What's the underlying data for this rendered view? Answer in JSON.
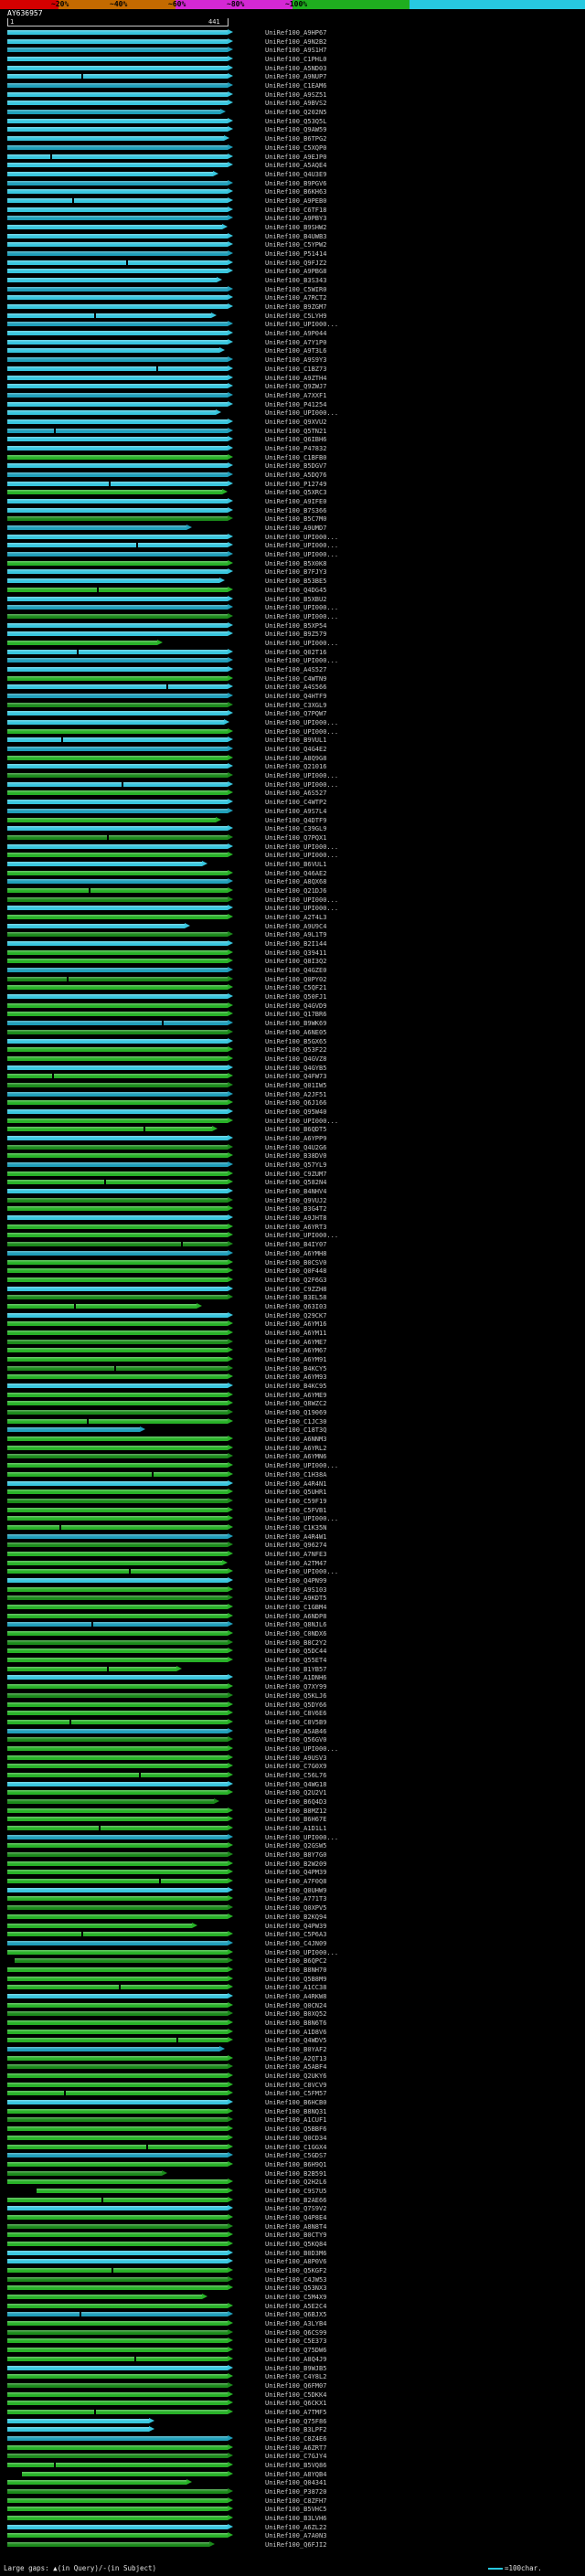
{
  "query": {
    "name": "AY636957",
    "start_label": "1",
    "end_label": "441",
    "length": 441
  },
  "legend": {
    "gaps_text": "Large gaps: ▲(in Query)/-(in Subject)",
    "scale_text": "=100char.",
    "scale_line_color": "#27c8e0"
  },
  "colors": {
    "background": "#000000",
    "label_text": "#c9c9c9",
    "ruler": "#c8c8c8"
  },
  "chart_data": {
    "type": "bar",
    "orientation": "horizontal",
    "title": "AY636957",
    "x_range": [
      1,
      441
    ],
    "identity_key": {
      "labels": [
        "~20%",
        "~40%",
        "~60%",
        "~80%",
        "~100%"
      ],
      "colors": [
        "#d40000",
        "#c46a00",
        "#d428d4",
        "#1fae1f",
        "#27c8e0"
      ],
      "widths": [
        64,
        128,
        128,
        128,
        192
      ]
    },
    "label_prefix": "UniRef100_",
    "palette": [
      "#38c6de",
      "#1f9fba",
      "#27b127",
      "#1b8a1b"
    ],
    "rows_format": [
      "label_suffix",
      "palette_index",
      "q_end",
      "q_start",
      "gap_positions"
    ],
    "rows": [
      [
        "A9HP67",
        0,
        441
      ],
      [
        "A9N2B2",
        0,
        441
      ],
      [
        "A9S1H7",
        1,
        441
      ],
      [
        "C1PHL0",
        0,
        441
      ],
      [
        "A5ND03",
        0,
        441
      ],
      [
        "A9NUP7",
        0,
        441,
        1,
        [
          150
        ]
      ],
      [
        "C1EAM6",
        1,
        441
      ],
      [
        "A9SZ51",
        0,
        441
      ],
      [
        "A9BVS2",
        0,
        441
      ],
      [
        "Q202N5",
        1,
        428
      ],
      [
        "Q53Q5L",
        0,
        441
      ],
      [
        "Q9AW59",
        0,
        441
      ],
      [
        "B6TPG2",
        0,
        435
      ],
      [
        "C5XQP0",
        1,
        441
      ],
      [
        "A9EJP0",
        0,
        441,
        1,
        [
          88
        ]
      ],
      [
        "A5AQE4",
        0,
        441
      ],
      [
        "Q4U3E9",
        0,
        412
      ],
      [
        "B9PGV6",
        1,
        441
      ],
      [
        "B6KH63",
        0,
        441
      ],
      [
        "A9PEB0",
        0,
        441,
        1,
        [
          132
        ]
      ],
      [
        "C6TF18",
        0,
        441
      ],
      [
        "A9PBY3",
        1,
        441
      ],
      [
        "B9SHW2",
        0,
        430
      ],
      [
        "B4UWB3",
        0,
        441
      ],
      [
        "C5YPW2",
        0,
        441
      ],
      [
        "P51414",
        1,
        441
      ],
      [
        "Q9FJZ2",
        0,
        441,
        1,
        [
          240
        ]
      ],
      [
        "A9PBG8",
        0,
        441
      ],
      [
        "B3S343",
        0,
        420
      ],
      [
        "C5WIR0",
        1,
        441
      ],
      [
        "A7RCT2",
        0,
        441
      ],
      [
        "B9ZGM7",
        0,
        441
      ],
      [
        "C5LYH9",
        0,
        408,
        1,
        [
          175
        ]
      ],
      [
        "UPI000...",
        1,
        441
      ],
      [
        "A9P044",
        0,
        441
      ],
      [
        "A7Y1P0",
        0,
        441
      ],
      [
        "A9T3L6",
        0,
        425
      ],
      [
        "A9S9Y3",
        1,
        441
      ],
      [
        "C1BZ73",
        0,
        441,
        1,
        [
          300
        ]
      ],
      [
        "A9ZTH4",
        0,
        441
      ],
      [
        "Q9ZWJ7",
        0,
        441
      ],
      [
        "A7XXF1",
        1,
        441
      ],
      [
        "P41254",
        0,
        441
      ],
      [
        "UPI000...",
        0,
        418
      ],
      [
        "Q9XVU2",
        0,
        441
      ],
      [
        "Q5TN21",
        1,
        441,
        1,
        [
          95
        ]
      ],
      [
        "Q6IBH6",
        0,
        441
      ],
      [
        "P47832",
        0,
        441
      ],
      [
        "C1BFB0",
        2,
        441
      ],
      [
        "B5DGV7",
        0,
        441
      ],
      [
        "A5DQ76",
        1,
        441
      ],
      [
        "P12749",
        0,
        441,
        1,
        [
          205
        ]
      ],
      [
        "Q5XRC3",
        2,
        430
      ],
      [
        "A9IFE0",
        0,
        441
      ],
      [
        "B7S366",
        0,
        441
      ],
      [
        "B5C7M0",
        3,
        441
      ],
      [
        "A9UMD7",
        1,
        360
      ],
      [
        "UPI000...",
        0,
        441
      ],
      [
        "UPI000...",
        0,
        441,
        1,
        [
          260
        ]
      ],
      [
        "UPI000...",
        1,
        441
      ],
      [
        "B5X0K8",
        2,
        441
      ],
      [
        "B7FJY3",
        0,
        441
      ],
      [
        "B53BE5",
        0,
        425
      ],
      [
        "Q4DG45",
        2,
        441,
        1,
        [
          180
        ]
      ],
      [
        "B5XBU2",
        0,
        441
      ],
      [
        "UPI000...",
        1,
        441
      ],
      [
        "UPI000...",
        3,
        441
      ],
      [
        "B5XP54",
        0,
        441
      ],
      [
        "B9Z579",
        0,
        441
      ],
      [
        "UPI000...",
        2,
        300
      ],
      [
        "Q02T16",
        0,
        441,
        1,
        [
          140
        ]
      ],
      [
        "UPI000...",
        1,
        441
      ],
      [
        "A4S527",
        0,
        441
      ],
      [
        "C4WTN9",
        2,
        441
      ],
      [
        "A4S566",
        0,
        441,
        1,
        [
          320
        ]
      ],
      [
        "Q4HTF9",
        1,
        441
      ],
      [
        "C3XGL9",
        3,
        441
      ],
      [
        "Q7PQW7",
        0,
        441
      ],
      [
        "UPI000...",
        0,
        435
      ],
      [
        "UPI000...",
        2,
        441
      ],
      [
        "B9VUL1",
        0,
        441,
        1,
        [
          110
        ]
      ],
      [
        "Q4G4E2",
        1,
        441
      ],
      [
        "A8Q9G8",
        2,
        441
      ],
      [
        "Q21016",
        0,
        441
      ],
      [
        "UPI000...",
        3,
        441
      ],
      [
        "UPI000...",
        0,
        441,
        1,
        [
          230
        ]
      ],
      [
        "A6S527",
        2,
        441
      ],
      [
        "C4WTP2",
        0,
        441
      ],
      [
        "A9S7L4",
        1,
        441
      ],
      [
        "Q4DTF9",
        2,
        418
      ],
      [
        "C39GL9",
        0,
        441
      ],
      [
        "Q7PQX1",
        3,
        441,
        1,
        [
          200
        ]
      ],
      [
        "UPI000...",
        0,
        441
      ],
      [
        "UPI000...",
        2,
        441
      ],
      [
        "B6VUL1",
        0,
        390
      ],
      [
        "Q46AE2",
        2,
        441
      ],
      [
        "A8QX68",
        1,
        441
      ],
      [
        "Q21DJ6",
        2,
        441,
        1,
        [
          165
        ]
      ],
      [
        "UPI000...",
        3,
        441
      ],
      [
        "UPI000...",
        0,
        441
      ],
      [
        "A2T4L3",
        2,
        441
      ],
      [
        "A9U9C4",
        0,
        355
      ],
      [
        "A9L1T9",
        3,
        441
      ],
      [
        "B2I144",
        0,
        441
      ],
      [
        "Q39411",
        2,
        441
      ],
      [
        "Q8I3Q2",
        2,
        441
      ],
      [
        "Q4GZE0",
        1,
        441
      ],
      [
        "Q0PY02",
        3,
        441,
        1,
        [
          120
        ]
      ],
      [
        "C5QF21",
        2,
        441
      ],
      [
        "Q50FJ1",
        0,
        441
      ],
      [
        "Q4GVD9",
        2,
        441
      ],
      [
        "Q17BR6",
        2,
        441
      ],
      [
        "B9WK69",
        1,
        441,
        1,
        [
          310
        ]
      ],
      [
        "A6NE05",
        3,
        441
      ],
      [
        "B5GX65",
        0,
        441
      ],
      [
        "Q53F22",
        2,
        441
      ],
      [
        "Q4GVZ8",
        2,
        441
      ],
      [
        "Q4GYB5",
        0,
        441
      ],
      [
        "Q4FW73",
        2,
        441,
        1,
        [
          90
        ]
      ],
      [
        "Q01IW5",
        3,
        441
      ],
      [
        "A2JF51",
        1,
        441
      ],
      [
        "Q6J166",
        2,
        441
      ],
      [
        "Q95W40",
        0,
        441
      ],
      [
        "UPI000...",
        2,
        441
      ],
      [
        "B6QDT5",
        2,
        410,
        1,
        [
          275
        ]
      ],
      [
        "A6YPP9",
        0,
        441
      ],
      [
        "Q4U2G6",
        3,
        441
      ],
      [
        "B38DV0",
        2,
        441
      ],
      [
        "Q57YL9",
        1,
        441
      ],
      [
        "C9ZUM7",
        2,
        441
      ],
      [
        "Q582N4",
        2,
        441,
        1,
        [
          195
        ]
      ],
      [
        "B4NHV4",
        0,
        441
      ],
      [
        "Q9VUJ2",
        3,
        441
      ],
      [
        "B3G4T2",
        2,
        441
      ],
      [
        "A9JHT8",
        0,
        441
      ],
      [
        "A6YRT3",
        2,
        441
      ],
      [
        "UPI000...",
        2,
        441
      ],
      [
        "B4IY07",
        3,
        441,
        1,
        [
          350
        ]
      ],
      [
        "A6YMH8",
        1,
        441
      ],
      [
        "B0CSV0",
        2,
        441
      ],
      [
        "Q0F448",
        2,
        441
      ],
      [
        "Q2F6G3",
        2,
        441
      ],
      [
        "C9ZZH8",
        0,
        441
      ],
      [
        "B3EL58",
        3,
        441
      ],
      [
        "Q63I03",
        2,
        380,
        1,
        [
          135
        ]
      ],
      [
        "Q29CK7",
        0,
        441
      ],
      [
        "A6YM16",
        2,
        441
      ],
      [
        "A6YM11",
        2,
        441
      ],
      [
        "A6YME7",
        3,
        441
      ],
      [
        "A6YM67",
        2,
        441
      ],
      [
        "A6YM91",
        2,
        441
      ],
      [
        "B4KCY5",
        3,
        441,
        1,
        [
          215
        ]
      ],
      [
        "A6YM93",
        2,
        441
      ],
      [
        "B4KC95",
        0,
        441
      ],
      [
        "A6YME9",
        2,
        441
      ],
      [
        "Q8WZC2",
        2,
        441
      ],
      [
        "Q19069",
        3,
        441
      ],
      [
        "C1JC30",
        2,
        441,
        1,
        [
          160
        ]
      ],
      [
        "C18T3Q",
        1,
        265
      ],
      [
        "A6NNM3",
        2,
        441
      ],
      [
        "A6YRL2",
        2,
        441
      ],
      [
        "A6YMN6",
        3,
        441
      ],
      [
        "UPI000...",
        2,
        441
      ],
      [
        "C1H38A",
        2,
        441,
        1,
        [
          290
        ]
      ],
      [
        "A4R4N1",
        0,
        441
      ],
      [
        "Q5UHR1",
        2,
        441
      ],
      [
        "C59F19",
        3,
        441
      ],
      [
        "C5FVB1",
        2,
        441
      ],
      [
        "UPI000...",
        2,
        441
      ],
      [
        "C1K35N",
        2,
        441,
        1,
        [
          105
        ]
      ],
      [
        "A4R4W1",
        1,
        441
      ],
      [
        "Q96274",
        3,
        441
      ],
      [
        "A7NFE3",
        2,
        441
      ],
      [
        "A2TM47",
        2,
        430
      ],
      [
        "UPI000...",
        2,
        441,
        1,
        [
          245
        ]
      ],
      [
        "Q4PN99",
        0,
        441
      ],
      [
        "A9S103",
        2,
        441
      ],
      [
        "A9KDT5",
        3,
        441
      ],
      [
        "C1GBM4",
        2,
        441
      ],
      [
        "A6NDP8",
        2,
        441
      ],
      [
        "Q8NJL6",
        1,
        441,
        1,
        [
          170
        ]
      ],
      [
        "C0NDX6",
        2,
        441
      ],
      [
        "B8C2Y2",
        3,
        441
      ],
      [
        "Q5DC44",
        2,
        441
      ],
      [
        "Q55ET4",
        2,
        441
      ],
      [
        "B1YB57",
        2,
        340,
        1,
        [
          200
        ]
      ],
      [
        "A1DNH6",
        0,
        441
      ],
      [
        "Q7XY99",
        2,
        441
      ],
      [
        "Q5KLJ6",
        3,
        441
      ],
      [
        "Q5DY66",
        2,
        441
      ],
      [
        "C8V6E6",
        2,
        441
      ],
      [
        "C8V5B9",
        2,
        441,
        1,
        [
          125
        ]
      ],
      [
        "A5AB46",
        1,
        441
      ],
      [
        "Q56GV0",
        3,
        441
      ],
      [
        "UPI000...",
        2,
        441
      ],
      [
        "A9USV3",
        2,
        441
      ],
      [
        "C7G0X9",
        2,
        441
      ],
      [
        "C56L76",
        2,
        441,
        1,
        [
          265
        ]
      ],
      [
        "Q4WG18",
        0,
        441
      ],
      [
        "Q2U2V1",
        2,
        441
      ],
      [
        "B6Q4D3",
        3,
        415
      ],
      [
        "B8MZ12",
        2,
        441
      ],
      [
        "B6H67E",
        2,
        441
      ],
      [
        "A1D1L1",
        2,
        441,
        1,
        [
          185
        ]
      ],
      [
        "UPI000...",
        1,
        441
      ],
      [
        "Q2GSW5",
        2,
        441
      ],
      [
        "B8Y7G0",
        3,
        441
      ],
      [
        "B2W209",
        2,
        441
      ],
      [
        "Q4PM39",
        2,
        441
      ],
      [
        "A7F0Q8",
        2,
        441,
        1,
        [
          305
        ]
      ],
      [
        "Q0UHW9",
        0,
        441
      ],
      [
        "A771T3",
        2,
        441
      ],
      [
        "Q0XPV5",
        3,
        441
      ],
      [
        "B2KQ94",
        2,
        441
      ],
      [
        "Q4PW39",
        2,
        370
      ],
      [
        "C5P6A3",
        2,
        441,
        1,
        [
          150
        ]
      ],
      [
        "C4JN09",
        1,
        441
      ],
      [
        "UPI000...",
        2,
        441
      ],
      [
        "B6QPC2",
        3,
        441,
        15
      ],
      [
        "B8NH70",
        2,
        441
      ],
      [
        "Q5B8M9",
        2,
        441
      ],
      [
        "A1CC38",
        2,
        441,
        1,
        [
          225
        ]
      ],
      [
        "A4RKW8",
        0,
        441
      ],
      [
        "Q0CN24",
        2,
        441
      ],
      [
        "B0XQ52",
        3,
        441
      ],
      [
        "B8N6T6",
        2,
        441
      ],
      [
        "A1D8V6",
        2,
        441
      ],
      [
        "Q4WDV5",
        2,
        441,
        1,
        [
          340
        ]
      ],
      [
        "B0YAF2",
        1,
        425
      ],
      [
        "A2QT13",
        2,
        441
      ],
      [
        "A5ABF4",
        3,
        441
      ],
      [
        "Q2UKY6",
        2,
        441
      ],
      [
        "C8VCV9",
        2,
        441
      ],
      [
        "C5FM57",
        2,
        441,
        1,
        [
          115
        ]
      ],
      [
        "B6HCB0",
        0,
        441
      ],
      [
        "B8NQ31",
        2,
        441
      ],
      [
        "A1CUF1",
        3,
        441
      ],
      [
        "Q5BBF6",
        2,
        441
      ],
      [
        "Q0CD34",
        2,
        441
      ],
      [
        "C1GGX4",
        2,
        441,
        1,
        [
          280
        ]
      ],
      [
        "C5GDS7",
        1,
        441
      ],
      [
        "B6H9Q1",
        2,
        441
      ],
      [
        "B2B591",
        3,
        310
      ],
      [
        "Q2H2L6",
        2,
        441
      ],
      [
        "C9S7U5",
        2,
        441,
        60
      ],
      [
        "B2AE66",
        2,
        441,
        1,
        [
          190
        ]
      ],
      [
        "Q7S9V2",
        0,
        441
      ],
      [
        "Q4P8E4",
        2,
        441
      ],
      [
        "A8N8T4",
        3,
        441
      ],
      [
        "B0CTY9",
        2,
        441
      ],
      [
        "Q5KQ84",
        2,
        441
      ],
      [
        "B0D3M6",
        0,
        441
      ],
      [
        "A8P0V6",
        0,
        441
      ],
      [
        "Q5KGF2",
        2,
        441,
        1,
        [
          210
        ]
      ],
      [
        "C4JW53",
        3,
        441
      ],
      [
        "Q53NX3",
        2,
        441
      ],
      [
        "C5M4X9",
        2,
        390
      ],
      [
        "A5E2C4",
        2,
        441
      ],
      [
        "Q6BJX5",
        1,
        441,
        1,
        [
          145
        ]
      ],
      [
        "A3LYB4",
        2,
        441
      ],
      [
        "Q6CS99",
        3,
        441
      ],
      [
        "C5E373",
        2,
        441
      ],
      [
        "Q75DW6",
        2,
        441
      ],
      [
        "A8Q4J9",
        2,
        441,
        1,
        [
          255
        ]
      ],
      [
        "B9WJB5",
        0,
        441
      ],
      [
        "C4Y8L2",
        2,
        441
      ],
      [
        "Q6FM07",
        3,
        441
      ],
      [
        "C5DKK4",
        2,
        441
      ],
      [
        "Q6CKX1",
        2,
        441
      ],
      [
        "A7TMF5",
        2,
        441,
        1,
        [
          175
        ]
      ],
      [
        "Q75F86",
        0,
        285
      ],
      [
        "B3LPF2",
        0,
        285
      ],
      [
        "C8Z4E6",
        1,
        441
      ],
      [
        "A6ZRT7",
        2,
        441
      ],
      [
        "C7GJY4",
        3,
        441
      ],
      [
        "B5VQ86",
        2,
        441,
        1,
        [
          95
        ]
      ],
      [
        "A8YQB4",
        2,
        441,
        30
      ],
      [
        "Q04341",
        2,
        360
      ],
      [
        "P38720",
        3,
        441
      ],
      [
        "C8ZFH7",
        2,
        441
      ],
      [
        "B5VHC5",
        2,
        441
      ],
      [
        "B3LVH6",
        2,
        441
      ],
      [
        "A6ZL22",
        0,
        441
      ],
      [
        "A7A0N3",
        2,
        441
      ],
      [
        "Q6FJI2",
        3,
        405
      ]
    ]
  }
}
